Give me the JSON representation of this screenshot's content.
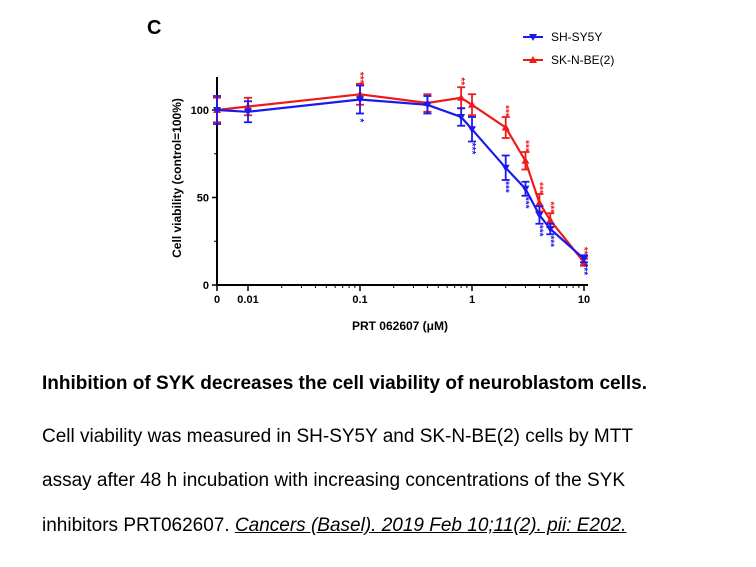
{
  "chart_data": {
    "type": "line",
    "panel_label": "C",
    "xlabel": "PRT 062607 (μM)",
    "ylabel": "Cell viability (control=100%)",
    "x_scale": "log",
    "ylim": [
      0,
      120
    ],
    "x_ticks": [
      {
        "value": 0,
        "label": "0"
      },
      {
        "value": 0.01,
        "label": "0.01"
      },
      {
        "value": 0.1,
        "label": "0.1"
      },
      {
        "value": 1,
        "label": "1"
      },
      {
        "value": 10,
        "label": "10"
      }
    ],
    "y_ticks": [
      {
        "value": 0,
        "label": "0"
      },
      {
        "value": 50,
        "label": "50"
      },
      {
        "value": 100,
        "label": "100"
      }
    ],
    "x": [
      0,
      0.01,
      0.1,
      0.4,
      0.8,
      1,
      2,
      3,
      4,
      5,
      10
    ],
    "series": [
      {
        "name": "SH-SY5Y",
        "color": "#1a1aee",
        "marker": "triangle-down",
        "values": [
          100,
          99,
          106,
          103,
          96,
          89,
          67,
          55,
          40,
          32,
          15
        ],
        "errors": [
          8,
          6,
          8,
          5,
          5,
          7,
          7,
          4,
          5,
          3,
          2
        ],
        "significance": [
          "",
          "",
          "*",
          "",
          "",
          "***",
          "***",
          "***",
          "***",
          "***",
          "***"
        ]
      },
      {
        "name": "SK-N-BE(2)",
        "color": "#ee1a1a",
        "marker": "triangle-up",
        "values": [
          100,
          102,
          109,
          104,
          107,
          103,
          90,
          71,
          47,
          37,
          13
        ],
        "errors": [
          7,
          5,
          6,
          5,
          6,
          6,
          6,
          5,
          5,
          4,
          2
        ],
        "significance": [
          "",
          "",
          "***",
          "",
          "**",
          "",
          "***",
          "***",
          "***",
          "***",
          "***"
        ]
      }
    ]
  },
  "caption": {
    "title": "Inhibition of SYK decreases the cell viability of neuroblastom cells.",
    "line1": " Cell viability was measured in SH-SY5Y and SK-N-BE(2) cells by MTT",
    "line2": "assay after 48 h incubation with increasing concentrations of the SYK",
    "line3_text": "inhibitors PRT062607. ",
    "citation": "Cancers (Basel). 2019 Feb 10;11(2). pii: E202. "
  }
}
